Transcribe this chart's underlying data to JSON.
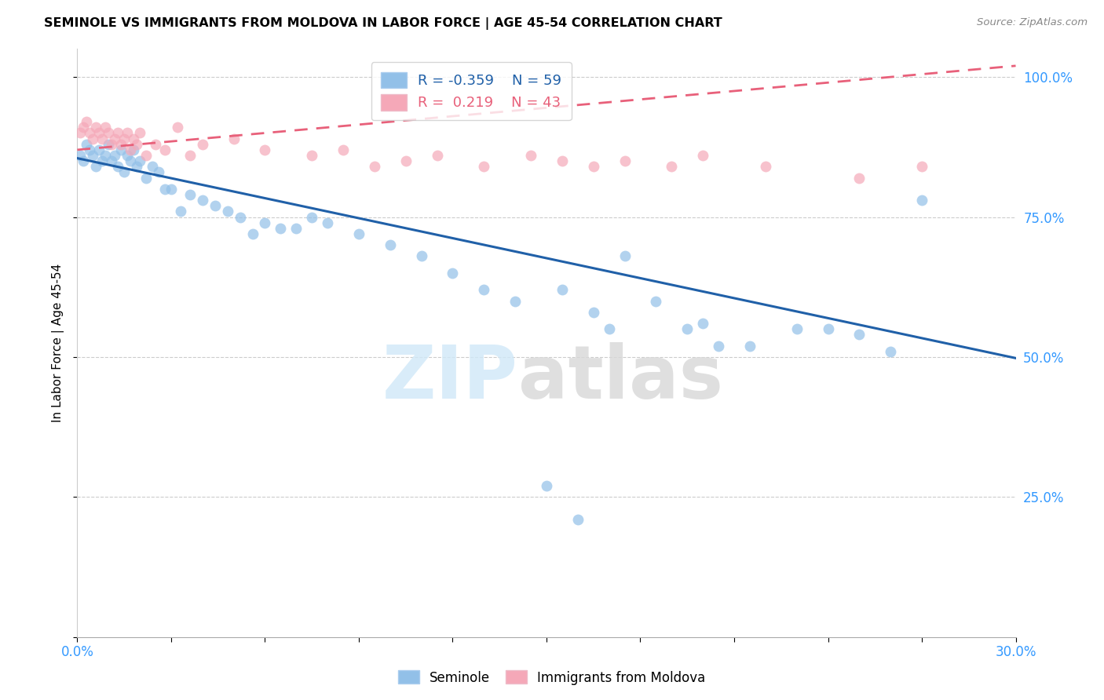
{
  "title": "SEMINOLE VS IMMIGRANTS FROM MOLDOVA IN LABOR FORCE | AGE 45-54 CORRELATION CHART",
  "source": "Source: ZipAtlas.com",
  "ylabel": "In Labor Force | Age 45-54",
  "xlim": [
    0.0,
    0.3
  ],
  "ylim": [
    0.0,
    1.05
  ],
  "yticks": [
    0.0,
    0.25,
    0.5,
    0.75,
    1.0
  ],
  "ytick_labels": [
    "",
    "25.0%",
    "50.0%",
    "75.0%",
    "100.0%"
  ],
  "xticks": [
    0.0,
    0.03,
    0.06,
    0.09,
    0.12,
    0.15,
    0.18,
    0.21,
    0.24,
    0.27,
    0.3
  ],
  "xtick_labels": [
    "0.0%",
    "",
    "",
    "",
    "",
    "",
    "",
    "",
    "",
    "",
    "30.0%"
  ],
  "watermark_text": "ZIP",
  "watermark_text2": "atlas",
  "blue_color": "#92C0E8",
  "pink_color": "#F5A8B8",
  "blue_line_color": "#2060A8",
  "pink_line_color": "#E8607A",
  "legend_blue_label": "Seminole",
  "legend_pink_label": "Immigrants from Moldova",
  "R_blue": -0.359,
  "N_blue": 59,
  "R_pink": 0.219,
  "N_pink": 43,
  "blue_line_x0": 0.0,
  "blue_line_y0": 0.855,
  "blue_line_x1": 0.3,
  "blue_line_y1": 0.498,
  "pink_line_x0": 0.0,
  "pink_line_y0": 0.87,
  "pink_line_x1": 0.3,
  "pink_line_y1": 1.02,
  "seminole_x": [
    0.001,
    0.002,
    0.003,
    0.004,
    0.005,
    0.006,
    0.007,
    0.008,
    0.009,
    0.01,
    0.011,
    0.012,
    0.013,
    0.014,
    0.015,
    0.016,
    0.017,
    0.018,
    0.019,
    0.02,
    0.022,
    0.024,
    0.026,
    0.028,
    0.03,
    0.033,
    0.036,
    0.04,
    0.044,
    0.048,
    0.052,
    0.056,
    0.06,
    0.065,
    0.07,
    0.075,
    0.08,
    0.09,
    0.1,
    0.11,
    0.12,
    0.13,
    0.14,
    0.155,
    0.165,
    0.175,
    0.185,
    0.2,
    0.215,
    0.23,
    0.24,
    0.25,
    0.26,
    0.15,
    0.16,
    0.17,
    0.195,
    0.205,
    0.27
  ],
  "seminole_y": [
    0.86,
    0.85,
    0.88,
    0.87,
    0.86,
    0.84,
    0.87,
    0.85,
    0.86,
    0.88,
    0.85,
    0.86,
    0.84,
    0.87,
    0.83,
    0.86,
    0.85,
    0.87,
    0.84,
    0.85,
    0.82,
    0.84,
    0.83,
    0.8,
    0.8,
    0.76,
    0.79,
    0.78,
    0.77,
    0.76,
    0.75,
    0.72,
    0.74,
    0.73,
    0.73,
    0.75,
    0.74,
    0.72,
    0.7,
    0.68,
    0.65,
    0.62,
    0.6,
    0.62,
    0.58,
    0.68,
    0.6,
    0.56,
    0.52,
    0.55,
    0.55,
    0.54,
    0.51,
    0.27,
    0.21,
    0.55,
    0.55,
    0.52,
    0.78
  ],
  "moldova_x": [
    0.001,
    0.002,
    0.003,
    0.004,
    0.005,
    0.006,
    0.007,
    0.008,
    0.009,
    0.01,
    0.011,
    0.012,
    0.013,
    0.014,
    0.015,
    0.016,
    0.017,
    0.018,
    0.019,
    0.02,
    0.022,
    0.025,
    0.028,
    0.032,
    0.036,
    0.04,
    0.05,
    0.06,
    0.075,
    0.085,
    0.095,
    0.105,
    0.115,
    0.13,
    0.145,
    0.155,
    0.165,
    0.175,
    0.19,
    0.2,
    0.22,
    0.25,
    0.27
  ],
  "moldova_y": [
    0.9,
    0.91,
    0.92,
    0.9,
    0.89,
    0.91,
    0.9,
    0.89,
    0.91,
    0.9,
    0.88,
    0.89,
    0.9,
    0.88,
    0.89,
    0.9,
    0.87,
    0.89,
    0.88,
    0.9,
    0.86,
    0.88,
    0.87,
    0.91,
    0.86,
    0.88,
    0.89,
    0.87,
    0.86,
    0.87,
    0.84,
    0.85,
    0.86,
    0.84,
    0.86,
    0.85,
    0.84,
    0.85,
    0.84,
    0.86,
    0.84,
    0.82,
    0.84
  ]
}
